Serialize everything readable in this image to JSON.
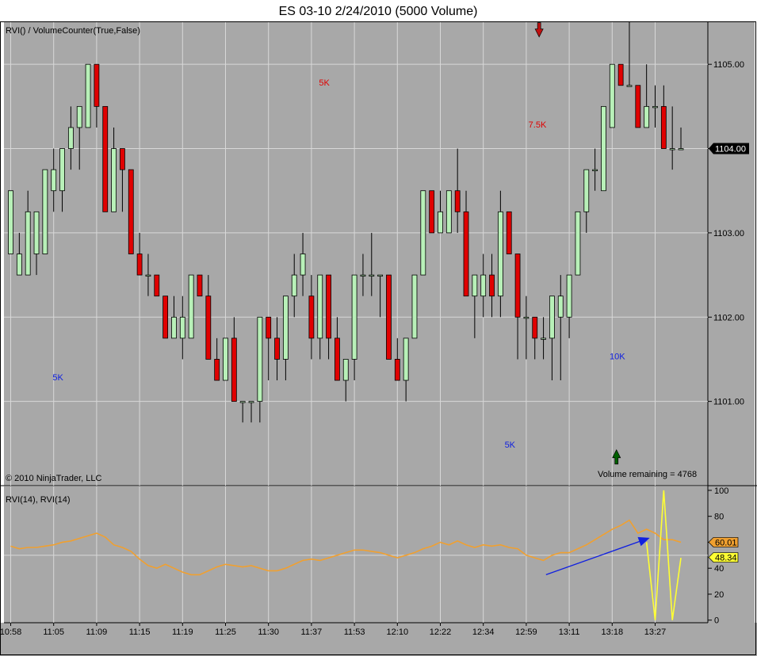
{
  "title": "ES 03-10  2/24/2010 (5000 Volume)",
  "copyright": "© 2010 NinjaTrader, LLC",
  "colors": {
    "background": "#a8a8a8",
    "up_candle": "#b8f0b8",
    "down_candle": "#e00000",
    "rvi_line": "#f0a030",
    "rvi_line2": "#ffff33",
    "grid": "#d8d8d8",
    "arrow_blue": "#1020e0",
    "label_red": "#e00000",
    "label_blue": "#1020e0",
    "arrow_green": "#006000",
    "arrow_darkred": "#c01010"
  },
  "chart_data": [
    {
      "type": "candlestick",
      "panel": "price",
      "indicator_label": "RVI() / VolumeCounter(True,False)",
      "y_ticks": [
        "1101.00",
        "1102.00",
        "1103.00",
        "1104.00",
        "1105.00"
      ],
      "y_tick_values": [
        1101,
        1102,
        1103,
        1104,
        1105
      ],
      "ylim": [
        1100.0,
        1105.5
      ],
      "current_price": "1104.00",
      "volume_remaining": "Volume remaining = 4768",
      "annotations": [
        {
          "text": "5K",
          "color": "red",
          "bar": 36.5,
          "price": 1104.75
        },
        {
          "text": "7.5K",
          "color": "red",
          "bar": 61.3,
          "price": 1104.25
        },
        {
          "text": "5K",
          "color": "blue",
          "bar": 5.5,
          "price": 1101.25
        },
        {
          "text": "5K",
          "color": "blue",
          "bar": 58.1,
          "price": 1100.45
        },
        {
          "text": "10K",
          "color": "blue",
          "bar": 70.6,
          "price": 1101.5
        }
      ],
      "arrows": [
        {
          "direction": "down",
          "color": "darkred",
          "bar": 61.5,
          "price": 1105.4
        },
        {
          "direction": "up",
          "color": "green",
          "bar": 70.5,
          "price": 1100.35
        }
      ],
      "bars": [
        {
          "o": 1102.75,
          "h": 1103.5,
          "l": 1102.75,
          "c": 1103.5
        },
        {
          "o": 1102.5,
          "h": 1103.0,
          "l": 1102.5,
          "c": 1102.75
        },
        {
          "o": 1102.5,
          "h": 1103.5,
          "l": 1102.5,
          "c": 1103.25
        },
        {
          "o": 1102.75,
          "h": 1103.25,
          "l": 1102.5,
          "c": 1103.25
        },
        {
          "o": 1102.75,
          "h": 1103.75,
          "l": 1102.75,
          "c": 1103.75
        },
        {
          "o": 1103.5,
          "h": 1104.0,
          "l": 1103.25,
          "c": 1103.75
        },
        {
          "o": 1103.5,
          "h": 1104.0,
          "l": 1103.25,
          "c": 1104.0
        },
        {
          "o": 1104.0,
          "h": 1104.5,
          "l": 1103.75,
          "c": 1104.25
        },
        {
          "o": 1104.25,
          "h": 1104.5,
          "l": 1103.75,
          "c": 1104.5
        },
        {
          "o": 1104.25,
          "h": 1105.0,
          "l": 1104.25,
          "c": 1105.0
        },
        {
          "o": 1105.0,
          "h": 1105.0,
          "l": 1104.25,
          "c": 1104.5
        },
        {
          "o": 1104.5,
          "h": 1104.5,
          "l": 1103.25,
          "c": 1103.25
        },
        {
          "o": 1103.25,
          "h": 1104.25,
          "l": 1103.25,
          "c": 1104.0
        },
        {
          "o": 1104.0,
          "h": 1104.0,
          "l": 1103.25,
          "c": 1103.75
        },
        {
          "o": 1103.75,
          "h": 1103.75,
          "l": 1102.75,
          "c": 1102.75
        },
        {
          "o": 1102.75,
          "h": 1103.0,
          "l": 1102.5,
          "c": 1102.5
        },
        {
          "o": 1102.5,
          "h": 1102.75,
          "l": 1102.25,
          "c": 1102.5
        },
        {
          "o": 1102.5,
          "h": 1102.5,
          "l": 1102.25,
          "c": 1102.25
        },
        {
          "o": 1102.25,
          "h": 1102.25,
          "l": 1101.75,
          "c": 1101.75
        },
        {
          "o": 1101.75,
          "h": 1102.25,
          "l": 1101.75,
          "c": 1102.0
        },
        {
          "o": 1101.75,
          "h": 1102.25,
          "l": 1101.5,
          "c": 1102.0
        },
        {
          "o": 1101.75,
          "h": 1102.5,
          "l": 1101.75,
          "c": 1102.5
        },
        {
          "o": 1102.5,
          "h": 1102.5,
          "l": 1102.25,
          "c": 1102.25
        },
        {
          "o": 1102.25,
          "h": 1102.5,
          "l": 1101.5,
          "c": 1101.5
        },
        {
          "o": 1101.5,
          "h": 1101.75,
          "l": 1101.25,
          "c": 1101.25
        },
        {
          "o": 1101.25,
          "h": 1101.75,
          "l": 1101.25,
          "c": 1101.75
        },
        {
          "o": 1101.75,
          "h": 1102.0,
          "l": 1101.0,
          "c": 1101.0
        },
        {
          "o": 1101.0,
          "h": 1101.0,
          "l": 1100.75,
          "c": 1101.0
        },
        {
          "o": 1101.0,
          "h": 1101.0,
          "l": 1100.75,
          "c": 1101.0
        },
        {
          "o": 1101.0,
          "h": 1102.0,
          "l": 1100.75,
          "c": 1102.0
        },
        {
          "o": 1102.0,
          "h": 1102.0,
          "l": 1101.25,
          "c": 1101.75
        },
        {
          "o": 1101.75,
          "h": 1102.0,
          "l": 1101.25,
          "c": 1101.5
        },
        {
          "o": 1101.5,
          "h": 1102.25,
          "l": 1101.25,
          "c": 1102.25
        },
        {
          "o": 1102.25,
          "h": 1102.75,
          "l": 1102.0,
          "c": 1102.5
        },
        {
          "o": 1102.5,
          "h": 1103.0,
          "l": 1102.25,
          "c": 1102.75
        },
        {
          "o": 1102.25,
          "h": 1102.5,
          "l": 1101.5,
          "c": 1101.75
        },
        {
          "o": 1101.75,
          "h": 1102.5,
          "l": 1101.5,
          "c": 1102.5
        },
        {
          "o": 1102.5,
          "h": 1102.5,
          "l": 1101.5,
          "c": 1101.75
        },
        {
          "o": 1101.75,
          "h": 1102.0,
          "l": 1101.25,
          "c": 1101.25
        },
        {
          "o": 1101.25,
          "h": 1101.5,
          "l": 1101.0,
          "c": 1101.5
        },
        {
          "o": 1101.5,
          "h": 1102.5,
          "l": 1101.25,
          "c": 1102.5
        },
        {
          "o": 1102.5,
          "h": 1102.75,
          "l": 1102.25,
          "c": 1102.5
        },
        {
          "o": 1102.5,
          "h": 1103.0,
          "l": 1102.25,
          "c": 1102.5
        },
        {
          "o": 1102.5,
          "h": 1102.5,
          "l": 1102.0,
          "c": 1102.5
        },
        {
          "o": 1102.5,
          "h": 1102.5,
          "l": 1101.5,
          "c": 1101.5
        },
        {
          "o": 1101.5,
          "h": 1101.75,
          "l": 1101.25,
          "c": 1101.25
        },
        {
          "o": 1101.25,
          "h": 1101.75,
          "l": 1101.0,
          "c": 1101.75
        },
        {
          "o": 1101.75,
          "h": 1102.5,
          "l": 1101.75,
          "c": 1102.5
        },
        {
          "o": 1102.5,
          "h": 1103.5,
          "l": 1102.5,
          "c": 1103.5
        },
        {
          "o": 1103.5,
          "h": 1103.5,
          "l": 1103.0,
          "c": 1103.0
        },
        {
          "o": 1103.0,
          "h": 1103.5,
          "l": 1103.0,
          "c": 1103.25
        },
        {
          "o": 1103.0,
          "h": 1103.5,
          "l": 1103.0,
          "c": 1103.5
        },
        {
          "o": 1103.5,
          "h": 1104.0,
          "l": 1103.0,
          "c": 1103.25
        },
        {
          "o": 1103.25,
          "h": 1103.5,
          "l": 1102.25,
          "c": 1102.25
        },
        {
          "o": 1102.25,
          "h": 1102.5,
          "l": 1101.75,
          "c": 1102.5
        },
        {
          "o": 1102.25,
          "h": 1102.75,
          "l": 1102.0,
          "c": 1102.5
        },
        {
          "o": 1102.5,
          "h": 1102.75,
          "l": 1102.0,
          "c": 1102.25
        },
        {
          "o": 1102.25,
          "h": 1103.5,
          "l": 1102.0,
          "c": 1103.25
        },
        {
          "o": 1103.25,
          "h": 1103.25,
          "l": 1102.75,
          "c": 1102.75
        },
        {
          "o": 1102.75,
          "h": 1102.75,
          "l": 1101.5,
          "c": 1102.0
        },
        {
          "o": 1102.0,
          "h": 1102.25,
          "l": 1101.5,
          "c": 1102.0
        },
        {
          "o": 1102.0,
          "h": 1102.0,
          "l": 1101.5,
          "c": 1101.75
        },
        {
          "o": 1101.75,
          "h": 1102.0,
          "l": 1101.5,
          "c": 1101.75
        },
        {
          "o": 1101.75,
          "h": 1102.25,
          "l": 1101.25,
          "c": 1102.25
        },
        {
          "o": 1102.0,
          "h": 1102.5,
          "l": 1101.25,
          "c": 1102.25
        },
        {
          "o": 1102.0,
          "h": 1102.5,
          "l": 1101.75,
          "c": 1102.5
        },
        {
          "o": 1102.5,
          "h": 1103.25,
          "l": 1102.5,
          "c": 1103.25
        },
        {
          "o": 1103.25,
          "h": 1103.75,
          "l": 1103.0,
          "c": 1103.75
        },
        {
          "o": 1103.75,
          "h": 1104.0,
          "l": 1103.5,
          "c": 1103.75
        },
        {
          "o": 1103.5,
          "h": 1104.5,
          "l": 1103.5,
          "c": 1104.5
        },
        {
          "o": 1104.25,
          "h": 1105.0,
          "l": 1104.25,
          "c": 1105.0
        },
        {
          "o": 1105.0,
          "h": 1105.0,
          "l": 1104.75,
          "c": 1104.75
        },
        {
          "o": 1104.75,
          "h": 1105.5,
          "l": 1104.75,
          "c": 1104.75
        },
        {
          "o": 1104.75,
          "h": 1104.75,
          "l": 1104.25,
          "c": 1104.25
        },
        {
          "o": 1104.25,
          "h": 1105.0,
          "l": 1104.25,
          "c": 1104.5
        },
        {
          "o": 1104.5,
          "h": 1104.75,
          "l": 1104.25,
          "c": 1104.5
        },
        {
          "o": 1104.5,
          "h": 1104.75,
          "l": 1104.0,
          "c": 1104.0
        },
        {
          "o": 1104.0,
          "h": 1104.5,
          "l": 1103.75,
          "c": 1104.0
        },
        {
          "o": 1104.0,
          "h": 1104.25,
          "l": 1104.0,
          "c": 1104.0
        }
      ],
      "x_ticks": [
        {
          "label": "10:58",
          "bar": 0
        },
        {
          "label": "11:05",
          "bar": 5
        },
        {
          "label": "11:09",
          "bar": 10
        },
        {
          "label": "11:15",
          "bar": 15
        },
        {
          "label": "11:19",
          "bar": 20
        },
        {
          "label": "11:25",
          "bar": 25
        },
        {
          "label": "11:30",
          "bar": 30
        },
        {
          "label": "11:37",
          "bar": 35
        },
        {
          "label": "11:53",
          "bar": 40
        },
        {
          "label": "12:10",
          "bar": 45
        },
        {
          "label": "12:22",
          "bar": 50
        },
        {
          "label": "12:34",
          "bar": 55
        },
        {
          "label": "12:59",
          "bar": 60
        },
        {
          "label": "13:11",
          "bar": 65
        },
        {
          "label": "13:18",
          "bar": 70
        },
        {
          "label": "13:27",
          "bar": 75
        }
      ]
    },
    {
      "type": "line",
      "panel": "indicator",
      "indicator_label": "RVI(14), RVI(14)",
      "y_ticks": [
        "0",
        "20",
        "40",
        "60",
        "80",
        "100"
      ],
      "y_tick_values": [
        0,
        20,
        40,
        60,
        80,
        100
      ],
      "ylim": [
        -2,
        103
      ],
      "current_values": [
        "60.01",
        "48.34"
      ],
      "series": [
        {
          "name": "RVI(14)",
          "color": "orange",
          "values": [
            57,
            55,
            56,
            56,
            57,
            58,
            60,
            61,
            63,
            65,
            67,
            64,
            58,
            56,
            53,
            47,
            42,
            40,
            43,
            40,
            37,
            35,
            35,
            38,
            41,
            43,
            42,
            41,
            42,
            40,
            38,
            38,
            40,
            43,
            46,
            47,
            46,
            48,
            50,
            52,
            54,
            54,
            53,
            52,
            50,
            48,
            50,
            52,
            55,
            57,
            60,
            58,
            61,
            58,
            56,
            58,
            57,
            58,
            56,
            55,
            50,
            48,
            46,
            50,
            52,
            52,
            55,
            58,
            62,
            66,
            70,
            73,
            77,
            67,
            70,
            67,
            62,
            62,
            60
          ]
        },
        {
          "name": "RVI(14)",
          "color": "yellow",
          "values": [
            null,
            null,
            null,
            null,
            null,
            null,
            null,
            null,
            null,
            null,
            null,
            null,
            null,
            null,
            null,
            null,
            null,
            null,
            null,
            null,
            null,
            null,
            null,
            null,
            null,
            null,
            null,
            null,
            null,
            null,
            null,
            null,
            null,
            null,
            null,
            null,
            null,
            null,
            null,
            null,
            null,
            null,
            null,
            null,
            null,
            null,
            null,
            null,
            null,
            null,
            null,
            null,
            null,
            null,
            null,
            null,
            null,
            null,
            null,
            null,
            null,
            null,
            null,
            null,
            null,
            null,
            null,
            null,
            null,
            null,
            null,
            null,
            null,
            null,
            60,
            0,
            100,
            0,
            48
          ]
        }
      ],
      "trend_arrow": {
        "from_bar": 62.3,
        "from_value": 35,
        "to_bar": 74.2,
        "to_value": 63,
        "color": "blue"
      }
    }
  ]
}
